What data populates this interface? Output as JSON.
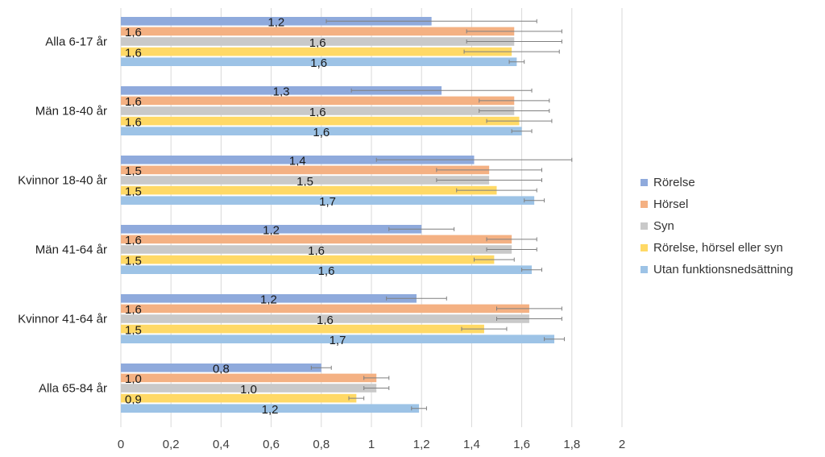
{
  "chart_data": {
    "type": "bar",
    "orientation": "horizontal",
    "categories": [
      "Alla 6-17 år",
      "Män 18-40 år",
      "Kvinnor 18-40 år",
      "Män 41-64 år",
      "Kvinnor 41-64 år",
      "Alla 65-84 år"
    ],
    "series": [
      {
        "name": "Rörelse",
        "color": "#8faadc",
        "values": [
          1.24,
          1.28,
          1.41,
          1.2,
          1.18,
          0.8
        ],
        "labels": [
          "1,2",
          "1,3",
          "1,4",
          "1,2",
          "1,2",
          "0,8"
        ],
        "err_low": [
          0.82,
          0.92,
          1.02,
          1.07,
          1.06,
          0.76
        ],
        "err_high": [
          1.66,
          1.64,
          1.8,
          1.33,
          1.3,
          0.84
        ]
      },
      {
        "name": "Hörsel",
        "color": "#f4b183",
        "values": [
          1.57,
          1.57,
          1.47,
          1.56,
          1.63,
          1.02
        ],
        "labels": [
          "1,6",
          "1,6",
          "1,5",
          "1,6",
          "1,6",
          "1,0"
        ],
        "err_low": [
          1.38,
          1.43,
          1.26,
          1.46,
          1.5,
          0.97
        ],
        "err_high": [
          1.76,
          1.71,
          1.68,
          1.66,
          1.76,
          1.07
        ]
      },
      {
        "name": "Syn",
        "color": "#c9c9c9",
        "values": [
          1.57,
          1.57,
          1.47,
          1.56,
          1.63,
          1.02
        ],
        "labels": [
          "1,6",
          "1,6",
          "1,5",
          "1,6",
          "1,6",
          "1,0"
        ],
        "err_low": [
          1.38,
          1.43,
          1.26,
          1.46,
          1.5,
          0.97
        ],
        "err_high": [
          1.76,
          1.71,
          1.68,
          1.66,
          1.76,
          1.07
        ]
      },
      {
        "name": "Rörelse, hörsel eller syn",
        "color": "#ffd966",
        "values": [
          1.56,
          1.59,
          1.5,
          1.49,
          1.45,
          0.94
        ],
        "labels": [
          "1,6",
          "1,6",
          "1,5",
          "1,5",
          "1,5",
          "0,9"
        ],
        "err_low": [
          1.37,
          1.46,
          1.34,
          1.41,
          1.36,
          0.91
        ],
        "err_high": [
          1.75,
          1.72,
          1.66,
          1.57,
          1.54,
          0.97
        ]
      },
      {
        "name": "Utan funktionsnedsättning",
        "color": "#9dc3e6",
        "values": [
          1.58,
          1.6,
          1.65,
          1.64,
          1.73,
          1.19
        ],
        "labels": [
          "1,6",
          "1,6",
          "1,7",
          "1,6",
          "1,7",
          "1,2"
        ],
        "err_low": [
          1.55,
          1.56,
          1.61,
          1.6,
          1.69,
          1.16
        ],
        "err_high": [
          1.61,
          1.64,
          1.69,
          1.68,
          1.77,
          1.22
        ]
      }
    ],
    "xlim": [
      0,
      2
    ],
    "xticks": [
      0,
      0.2,
      0.4,
      0.6,
      0.8,
      1,
      1.2,
      1.4,
      1.6,
      1.8,
      2
    ],
    "xtick_labels": [
      "0",
      "0,2",
      "0,4",
      "0,6",
      "0,8",
      "1",
      "1,2",
      "1,4",
      "1,6",
      "1,8",
      "2"
    ],
    "grid": true,
    "legend_position": "right",
    "title": "",
    "xlabel": "",
    "ylabel": ""
  }
}
